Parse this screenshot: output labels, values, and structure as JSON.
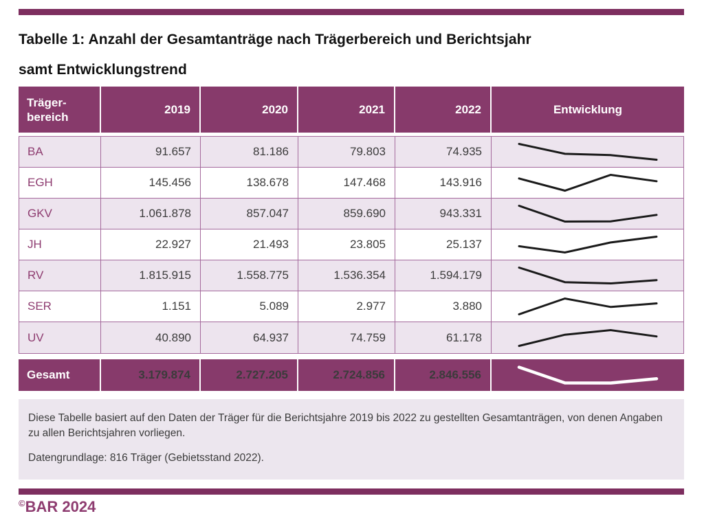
{
  "document": {
    "title_line1": "Tabelle 1: Anzahl der Gesamtanträge nach Trägerbereich und Berichtsjahr",
    "title_line2": "samt Entwicklungstrend",
    "note_paragraph1": "Diese Tabelle basiert auf den Daten der Träger für die Berichtsjahre 2019 bis 2022 zu gestellten Gesamtanträgen, von denen Angaben zu allen Berichtsjahren vorliegen.",
    "note_paragraph2": "Datengrundlage: 816 Träger (Gebietsstand 2022).",
    "copyright_symbol": "©",
    "copyright_text": "BAR 2024"
  },
  "table": {
    "headers": {
      "col0": "Träger-\nbereich",
      "years": [
        "2019",
        "2020",
        "2021",
        "2022"
      ],
      "trend": "Entwicklung"
    },
    "rows": [
      {
        "label": "BA",
        "values": [
          "91.657",
          "81.186",
          "79.803",
          "74.935"
        ]
      },
      {
        "label": "EGH",
        "values": [
          "145.456",
          "138.678",
          "147.468",
          "143.916"
        ]
      },
      {
        "label": "GKV",
        "values": [
          "1.061.878",
          "857.047",
          "859.690",
          "943.331"
        ]
      },
      {
        "label": "JH",
        "values": [
          "22.927",
          "21.493",
          "23.805",
          "25.137"
        ]
      },
      {
        "label": "RV",
        "values": [
          "1.815.915",
          "1.558.775",
          "1.536.354",
          "1.594.179"
        ]
      },
      {
        "label": "SER",
        "values": [
          "1.151",
          "5.089",
          "2.977",
          "3.880"
        ]
      },
      {
        "label": "UV",
        "values": [
          "40.890",
          "64.937",
          "74.759",
          "61.178"
        ]
      }
    ],
    "total": {
      "label": "Gesamt",
      "values": [
        "3.179.874",
        "2.727.205",
        "2.724.856",
        "2.846.556"
      ]
    }
  },
  "colors": {
    "accent_bar": "#7d2e5f",
    "header_bg": "#873a6b",
    "row_alt_bg": "#ede4ee",
    "label_text": "#8e3c70",
    "border": "#a4699c",
    "note_bg": "#ece6ee",
    "spark_dark": "#1a1a1a",
    "spark_light": "#ffffff"
  }
}
